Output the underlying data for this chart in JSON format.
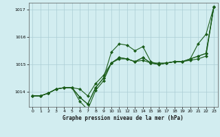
{
  "xlabel": "Graphe pression niveau de la mer (hPa)",
  "xlim": [
    -0.5,
    23.5
  ],
  "ylim": [
    1013.45,
    1017.25
  ],
  "yticks": [
    1014,
    1015,
    1016,
    1017
  ],
  "ytick_labels": [
    "1014",
    "1015",
    "1016",
    "1017"
  ],
  "xticks": [
    0,
    1,
    2,
    3,
    4,
    5,
    6,
    7,
    8,
    9,
    10,
    11,
    12,
    13,
    14,
    15,
    16,
    17,
    18,
    19,
    20,
    21,
    22,
    23
  ],
  "background_color": "#d2edf0",
  "grid_color": "#aacdd4",
  "line_color": "#1a5c1a",
  "series": [
    [
      1013.85,
      1013.85,
      1013.95,
      1014.1,
      1014.15,
      1014.15,
      1014.1,
      1013.85,
      1014.3,
      1014.6,
      1015.05,
      1015.2,
      1015.2,
      1015.1,
      1015.15,
      1015.05,
      1015.05,
      1015.05,
      1015.1,
      1015.1,
      1015.15,
      1015.2,
      1015.3,
      1017.1
    ],
    [
      1013.85,
      1013.85,
      1013.95,
      1014.1,
      1014.15,
      1014.15,
      1013.8,
      1013.55,
      1014.15,
      1014.5,
      1015.05,
      1015.25,
      1015.2,
      1015.1,
      1015.25,
      1015.05,
      1015.0,
      1015.05,
      1015.1,
      1015.1,
      1015.2,
      1015.3,
      1015.4,
      1017.1
    ],
    [
      1013.85,
      1013.85,
      1013.95,
      1014.1,
      1014.15,
      1014.15,
      1013.8,
      1013.55,
      1014.15,
      1014.5,
      1015.45,
      1015.75,
      1015.7,
      1015.5,
      1015.65,
      1015.1,
      1015.0,
      1015.05,
      1015.1,
      1015.1,
      1015.2,
      1015.3,
      1015.4,
      1017.1
    ],
    [
      1013.85,
      1013.85,
      1013.95,
      1014.1,
      1014.15,
      1014.15,
      1013.65,
      1013.35,
      1014.05,
      1014.4,
      1015.05,
      1015.25,
      1015.2,
      1015.1,
      1015.25,
      1015.05,
      1015.0,
      1015.05,
      1015.1,
      1015.1,
      1015.2,
      1015.75,
      1016.1,
      1017.1
    ]
  ],
  "marker": "D",
  "markersize": 2.0,
  "linewidth": 0.8
}
